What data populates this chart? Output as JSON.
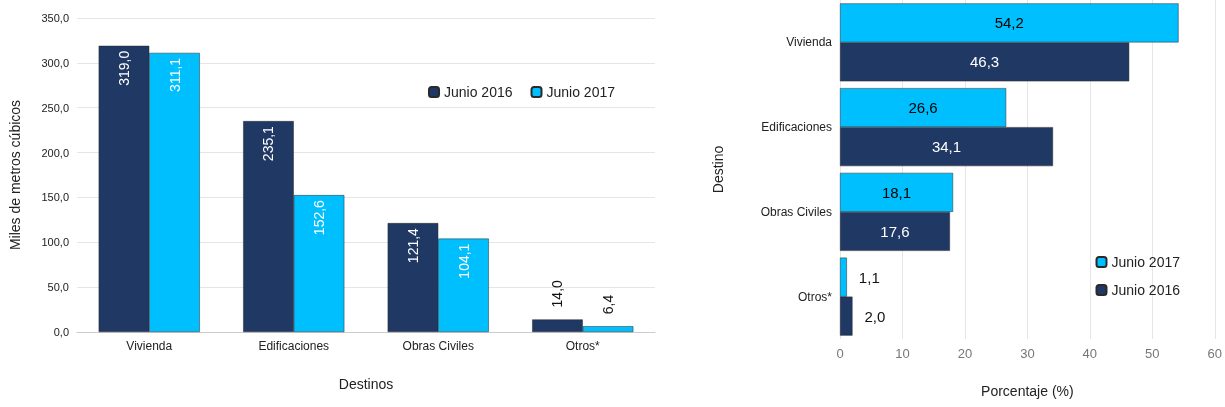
{
  "chart_data": [
    {
      "type": "bar",
      "xlabel": "Destinos",
      "ylabel": "Miles de metros cúbicos",
      "categories": [
        "Vivienda",
        "Edificaciones",
        "Obras Civiles",
        "Otros*"
      ],
      "series": [
        {
          "name": "Junio 2016",
          "color": "#1f3864",
          "values": [
            319.0,
            235.1,
            121.4,
            14.0
          ],
          "value_labels": [
            "319,0",
            "235,1",
            "121,4",
            "14,0"
          ]
        },
        {
          "name": "Junio 2017",
          "color": "#00bfff",
          "values": [
            311.1,
            152.6,
            104.1,
            6.4
          ],
          "value_labels": [
            "311,1",
            "152,6",
            "104,1",
            "6,4"
          ]
        }
      ],
      "ylim": [
        0,
        350
      ],
      "yticks": [
        {
          "value": 0,
          "label": "0,0"
        },
        {
          "value": 50,
          "label": "50,0"
        },
        {
          "value": 100,
          "label": "100,0"
        },
        {
          "value": 150,
          "label": "150,0"
        },
        {
          "value": 200,
          "label": "200,0"
        },
        {
          "value": 250,
          "label": "250,0"
        },
        {
          "value": 300,
          "label": "300,0"
        },
        {
          "value": 350,
          "label": "350,0"
        }
      ],
      "grid": "y",
      "legend": "top right"
    },
    {
      "type": "bar",
      "orientation": "horizontal",
      "xlabel": "Porcentaje (%)",
      "ylabel": "Destino",
      "categories": [
        "Vivienda",
        "Edificaciones",
        "Obras Civiles",
        "Otros*"
      ],
      "series": [
        {
          "name": "Junio 2017",
          "color": "#00bfff",
          "values": [
            54.2,
            26.6,
            18.1,
            1.1
          ],
          "value_labels": [
            "54,2",
            "26,6",
            "18,1",
            "1,1"
          ]
        },
        {
          "name": "Junio 2016",
          "color": "#1f3864",
          "values": [
            46.3,
            34.1,
            17.6,
            2.0
          ],
          "value_labels": [
            "46,3",
            "34,1",
            "17,6",
            "2,0"
          ]
        }
      ],
      "xlim": [
        0,
        60
      ],
      "xticks": [
        0,
        10,
        20,
        30,
        40,
        50,
        60
      ],
      "grid": "x",
      "legend": "bottom right"
    }
  ]
}
